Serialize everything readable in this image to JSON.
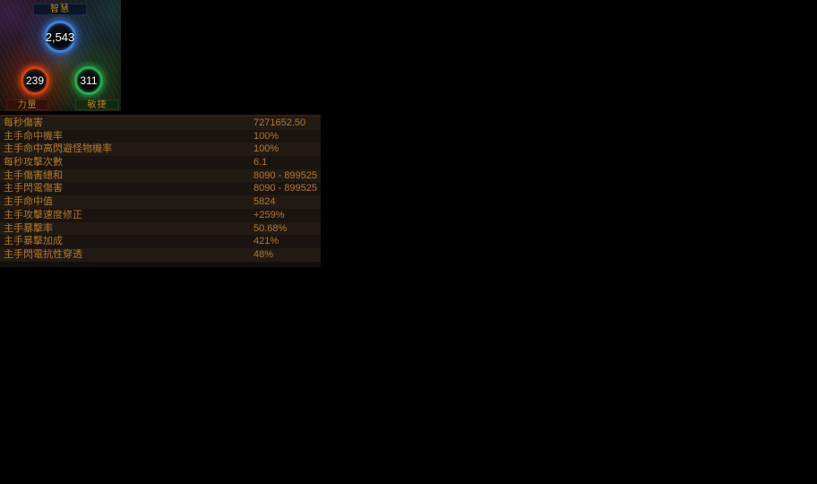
{
  "attributes": {
    "intelligence": {
      "label": "智慧",
      "value": "2,543"
    },
    "strength": {
      "label": "力量",
      "value": "239"
    },
    "dexterity": {
      "label": "敏捷",
      "value": "311"
    }
  },
  "stats": {
    "rows": [
      {
        "label": "每秒傷害",
        "value": "7271652.50"
      },
      {
        "label": "主手命中機率",
        "value": "100%"
      },
      {
        "label": "主手命中高閃避怪物機率",
        "value": "100%"
      },
      {
        "label": "每秒攻擊次數",
        "value": "6.1"
      },
      {
        "label": "主手傷害總和",
        "value": "8090 - 899525"
      },
      {
        "label": "主手閃電傷害",
        "value": "8090 - 899525"
      },
      {
        "label": "主手命中值",
        "value": "5824"
      },
      {
        "label": "主手攻擊速度修正",
        "value": "+259%"
      },
      {
        "label": "主手暴擊率",
        "value": "50.68%"
      },
      {
        "label": "主手暴擊加成",
        "value": "421%"
      },
      {
        "label": "主手閃電抗性穿透",
        "value": "48%"
      }
    ]
  },
  "colors": {
    "text_gold": "#b5782b",
    "label_gold": "#c08a30",
    "intelligence_ring": "#3f7fd4",
    "strength_ring": "#d0420e",
    "dexterity_ring": "#2aa84a",
    "table_border": "#3a1c11",
    "row_light": "#221b14",
    "row_dark": "#191410",
    "background": "#000000"
  }
}
